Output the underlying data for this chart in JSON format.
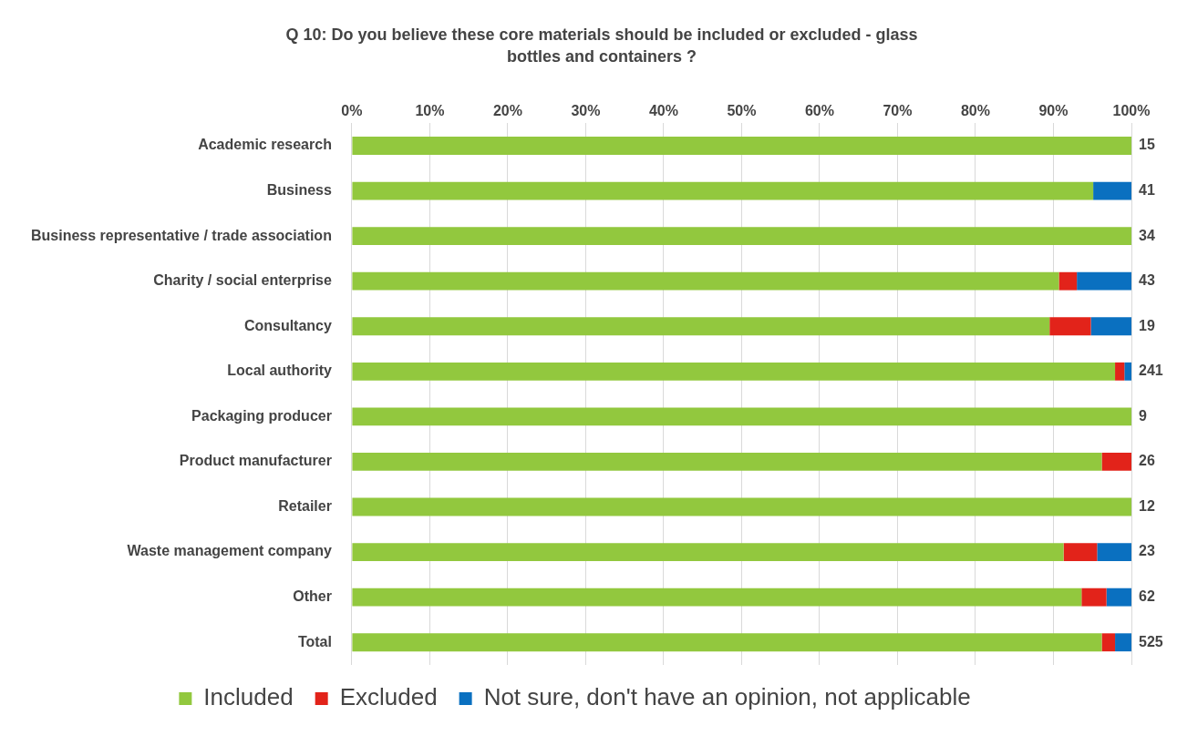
{
  "chart_data": {
    "type": "bar",
    "orientation": "horizontal",
    "stacked": true,
    "title": "Q 10: Do you believe these core materials should be included or excluded - glass bottles and containers ?",
    "categories": [
      "Academic research",
      "Business",
      "Business representative / trade association",
      "Charity / social enterprise",
      "Consultancy",
      "Local authority",
      "Packaging producer",
      "Product manufacturer",
      "Retailer",
      "Waste management company",
      "Other",
      "Total"
    ],
    "series": [
      {
        "name": "Included",
        "color": "#92c83e",
        "values": [
          100,
          95.1,
          100,
          90.7,
          89.5,
          97.9,
          100,
          96.2,
          100,
          91.3,
          93.6,
          96.2
        ]
      },
      {
        "name": "Excluded",
        "color": "#e2231a",
        "values": [
          0,
          0,
          0,
          2.3,
          5.3,
          1.2,
          0,
          3.8,
          0,
          4.3,
          3.2,
          1.7
        ]
      },
      {
        "name": "Not sure, don't have an opinion, not applicable",
        "color": "#0a70c0",
        "values": [
          0,
          4.9,
          0,
          7.0,
          5.2,
          0.9,
          0,
          0,
          0,
          4.4,
          3.2,
          2.1
        ]
      }
    ],
    "annotations": [
      "15",
      "41",
      "34",
      "43",
      "19",
      "241",
      "9",
      "26",
      "12",
      "23",
      "62",
      "525"
    ],
    "xlim": [
      0,
      100
    ],
    "xticks": [
      {
        "value": 0,
        "label": "0%"
      },
      {
        "value": 10,
        "label": "10%"
      },
      {
        "value": 20,
        "label": "20%"
      },
      {
        "value": 30,
        "label": "30%"
      },
      {
        "value": 40,
        "label": "40%"
      },
      {
        "value": 50,
        "label": "50%"
      },
      {
        "value": 60,
        "label": "60%"
      },
      {
        "value": 70,
        "label": "70%"
      },
      {
        "value": 80,
        "label": "80%"
      },
      {
        "value": 90,
        "label": "90%"
      },
      {
        "value": 100,
        "label": "100%"
      }
    ],
    "grid": "x",
    "legend": "bottom"
  }
}
